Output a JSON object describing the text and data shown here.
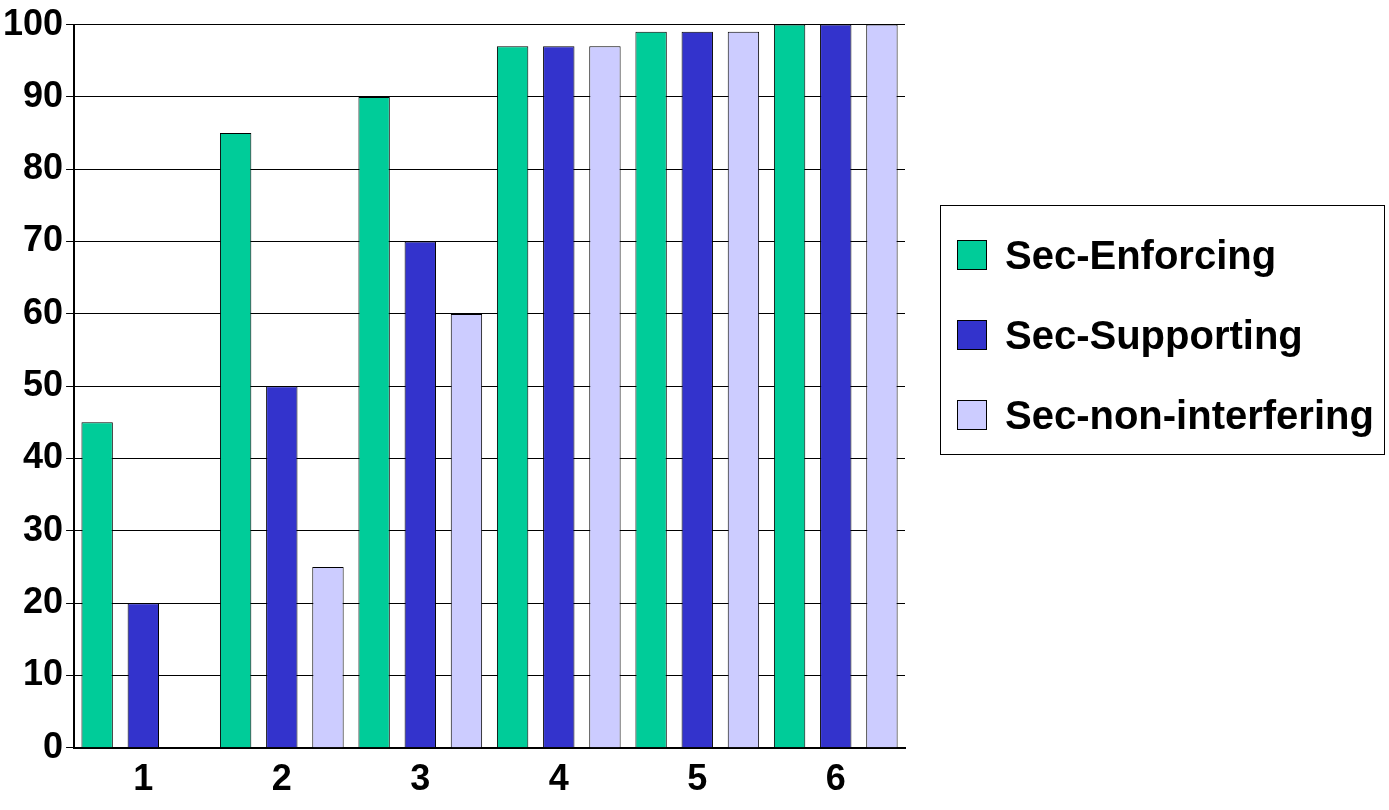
{
  "chart_data": {
    "type": "bar",
    "categories": [
      "1",
      "2",
      "3",
      "4",
      "5",
      "6"
    ],
    "series": [
      {
        "name": "Sec-Enforcing",
        "color": "#00cc99",
        "values": [
          45,
          85,
          90,
          97,
          99,
          100
        ]
      },
      {
        "name": "Sec-Supporting",
        "color": "#3333cc",
        "values": [
          20,
          50,
          70,
          97,
          99,
          100
        ]
      },
      {
        "name": "Sec-non-interfering",
        "color": "#ccccff",
        "values": [
          0,
          25,
          60,
          97,
          99,
          100
        ]
      }
    ],
    "ylim": [
      0,
      100
    ],
    "yticks": [
      0,
      10,
      20,
      30,
      40,
      50,
      60,
      70,
      80,
      90,
      100
    ],
    "grid": "y",
    "legend": "right"
  }
}
